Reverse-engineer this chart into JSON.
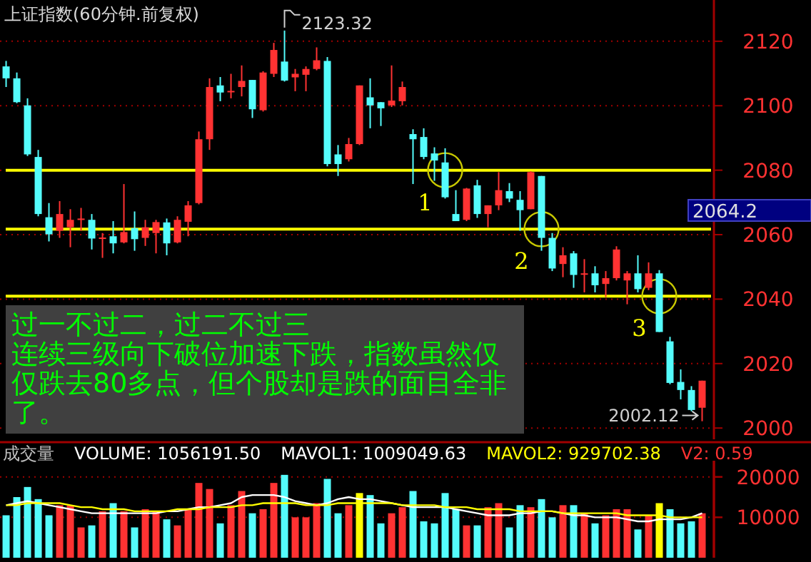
{
  "chart_data": [
    {
      "type": "candlestick",
      "title": "上证指数(60分钟.前复权)",
      "categories": [
        null,
        null,
        null,
        null,
        null,
        null,
        null,
        null,
        null,
        null,
        null,
        null,
        null,
        null,
        null,
        null,
        null,
        null,
        null,
        null,
        null,
        null,
        null,
        null,
        null,
        null,
        null,
        null,
        null,
        null,
        null,
        null,
        null,
        null,
        null,
        null,
        null,
        null,
        null,
        null,
        null,
        null,
        null,
        null,
        null,
        null,
        null,
        null,
        null,
        null,
        null,
        null,
        null,
        null,
        null,
        null,
        null,
        null,
        null,
        null,
        null,
        null,
        null,
        null,
        null,
        null
      ],
      "ohlc": [
        [
          2112.2,
          2113.9,
          2105.8,
          2108.5
        ],
        [
          2108.5,
          2110.3,
          2100.8,
          2101.1
        ],
        [
          2100.1,
          2102.3,
          2084.4,
          2084.9
        ],
        [
          2084.1,
          2086.3,
          2065.7,
          2066.4
        ],
        [
          2065.4,
          2069.8,
          2057.9,
          2060.1
        ],
        [
          2061.2,
          2070.4,
          2059.0,
          2066.4
        ],
        [
          2062.3,
          2067.9,
          2056.1,
          2064.6
        ],
        [
          2064.9,
          2068.3,
          2061.2,
          2065.0
        ],
        [
          2064.6,
          2066.4,
          2055.4,
          2058.8
        ],
        [
          2058.9,
          2060.5,
          2052.8,
          2059.1
        ],
        [
          2059.5,
          2064.2,
          2054.2,
          2057.3
        ],
        [
          2057.6,
          2075.7,
          2057.3,
          2060.8
        ],
        [
          2062.0,
          2067.2,
          2055.0,
          2058.6
        ],
        [
          2059.0,
          2064.6,
          2056.5,
          2062.3
        ],
        [
          2060.5,
          2064.6,
          2054.2,
          2063.9
        ],
        [
          2063.8,
          2065.0,
          2053.6,
          2057.3
        ],
        [
          2057.6,
          2065.7,
          2057.3,
          2064.6
        ],
        [
          2064.0,
          2070.4,
          2059.5,
          2069.1
        ],
        [
          2069.8,
          2092.0,
          2069.4,
          2089.6
        ],
        [
          2089.6,
          2108.5,
          2086.3,
          2105.8
        ],
        [
          2106.3,
          2108.9,
          2101.4,
          2104.1
        ],
        [
          2104.5,
          2109.9,
          2102.3,
          2104.6
        ],
        [
          2105.8,
          2112.5,
          2102.9,
          2107.7
        ],
        [
          2108.0,
          2108.0,
          2096.2,
          2098.9
        ],
        [
          2098.6,
          2110.7,
          2098.2,
          2110.3
        ],
        [
          2109.9,
          2119.5,
          2108.9,
          2117.3
        ],
        [
          2113.7,
          2123.32,
          2107.5,
          2107.8
        ],
        [
          2108.8,
          2111.4,
          2104.5,
          2109.9
        ],
        [
          2109.6,
          2112.2,
          2104.5,
          2111.4
        ],
        [
          2111.4,
          2118.1,
          2111.0,
          2114.1
        ],
        [
          2113.9,
          2115.1,
          2081.2,
          2081.9
        ],
        [
          2084.9,
          2087.8,
          2078.2,
          2081.9
        ],
        [
          2083.4,
          2090.0,
          2082.7,
          2088.1
        ],
        [
          2088.1,
          2106.3,
          2087.8,
          2106.3
        ],
        [
          2102.6,
          2108.5,
          2093.0,
          2100.1
        ],
        [
          2101.1,
          2101.1,
          2093.7,
          2099.2
        ],
        [
          2100.1,
          2112.5,
          2099.6,
          2101.6
        ],
        [
          2101.4,
          2107.5,
          2100.1,
          2105.8
        ],
        [
          2091.2,
          2092.7,
          2075.7,
          2089.6
        ],
        [
          2090.3,
          2093.0,
          2083.4,
          2084.1
        ],
        [
          2085.2,
          2087.1,
          2076.7,
          2083.0
        ],
        [
          2082.4,
          2086.8,
          2071.2,
          2071.6
        ],
        [
          2066.4,
          2073.8,
          2064.2,
          2064.2
        ],
        [
          2064.6,
          2074.5,
          2064.2,
          2074.3
        ],
        [
          2075.3,
          2077.0,
          2065.2,
          2066.4
        ],
        [
          2066.4,
          2069.1,
          2062.3,
          2069.1
        ],
        [
          2069.1,
          2079.4,
          2067.6,
          2073.8
        ],
        [
          2073.5,
          2076.0,
          2070.1,
          2071.2
        ],
        [
          2070.8,
          2073.5,
          2061.2,
          2067.6
        ],
        [
          2067.9,
          2079.7,
          2067.9,
          2079.4
        ],
        [
          2078.2,
          2078.2,
          2055.0,
          2059.0
        ],
        [
          2059.0,
          2060.5,
          2048.7,
          2049.5
        ],
        [
          2050.9,
          2056.1,
          2046.8,
          2053.6
        ],
        [
          2054.2,
          2054.9,
          2043.5,
          2047.5
        ],
        [
          2047.9,
          2052.4,
          2042.1,
          2048.0
        ],
        [
          2048.0,
          2050.2,
          2042.1,
          2044.3
        ],
        [
          2044.7,
          2048.7,
          2040.6,
          2046.5
        ],
        [
          2046.5,
          2056.4,
          2045.8,
          2055.4
        ],
        [
          2045.8,
          2048.7,
          2038.4,
          2048.0
        ],
        [
          2048.0,
          2053.6,
          2042.1,
          2043.1
        ],
        [
          2043.5,
          2051.4,
          2042.8,
          2048.0
        ],
        [
          2048.0,
          2049.0,
          2029.8,
          2029.8
        ],
        [
          2026.9,
          2028.3,
          2013.6,
          2014.0
        ],
        [
          2014.3,
          2018.2,
          2008.9,
          2011.8
        ],
        [
          2011.8,
          2013.0,
          2005.2,
          2005.6
        ],
        [
          2006.3,
          2014.7,
          2002.12,
          2014.7
        ]
      ],
      "colors": [
        "#54fcfc",
        "#54fcfc",
        "#54fcfc",
        "#54fcfc",
        "#54fcfc",
        "#ff3232",
        "#ff3232",
        "#ff3232",
        "#54fcfc",
        "#ff3232",
        "#54fcfc",
        "#ff3232",
        "#54fcfc",
        "#ff3232",
        "#ff3232",
        "#54fcfc",
        "#ff3232",
        "#ff3232",
        "#ff3232",
        "#ff3232",
        "#54fcfc",
        "#ff3232",
        "#ff3232",
        "#54fcfc",
        "#ff3232",
        "#ff3232",
        "#54fcfc",
        "#ff3232",
        "#ff3232",
        "#ff3232",
        "#54fcfc",
        "#54fcfc",
        "#ff3232",
        "#ff3232",
        "#54fcfc",
        "#54fcfc",
        "#ff3232",
        "#ff3232",
        "#54fcfc",
        "#54fcfc",
        "#54fcfc",
        "#54fcfc",
        "#54fcfc",
        "#ff3232",
        "#54fcfc",
        "#ff3232",
        "#ff3232",
        "#54fcfc",
        "#54fcfc",
        "#ff3232",
        "#54fcfc",
        "#54fcfc",
        "#ff3232",
        "#54fcfc",
        "#ff3232",
        "#54fcfc",
        "#ff3232",
        "#ff3232",
        "#ff3232",
        "#54fcfc",
        "#ff3232",
        "#54fcfc",
        "#54fcfc",
        "#54fcfc",
        "#54fcfc",
        "#ff3232"
      ],
      "ref_lines": [
        {
          "axis": "y",
          "value": 2080,
          "color": "#ffff00"
        },
        {
          "axis": "y",
          "value": 2061.7,
          "color": "#ffff00"
        },
        {
          "axis": "y",
          "value": 2040.9,
          "color": "#ffff00"
        }
      ],
      "ylim": [
        1996.5,
        2132.8
      ],
      "yticks": [
        2000,
        2020,
        2040,
        2060,
        2080,
        2100,
        2120
      ],
      "grid": "y",
      "annotations": [
        "过一不过二，过二不过三",
        "连续三级向下破位加速下跌，指数虽然仅仅跌去80多点，但个股却是跌的面目全非了。",
        "2123.32",
        "2002.12",
        "2064.2",
        "1",
        "2",
        "3"
      ]
    },
    {
      "type": "bar",
      "title": "成交量",
      "categories": [
        null,
        null,
        null,
        null,
        null,
        null,
        null,
        null,
        null,
        null,
        null,
        null,
        null,
        null,
        null,
        null,
        null,
        null,
        null,
        null,
        null,
        null,
        null,
        null,
        null,
        null,
        null,
        null,
        null,
        null,
        null,
        null,
        null,
        null,
        null,
        null,
        null,
        null,
        null,
        null,
        null,
        null,
        null,
        null,
        null,
        null,
        null,
        null,
        null,
        null,
        null,
        null,
        null,
        null,
        null,
        null,
        null,
        null,
        null,
        null,
        null,
        null,
        null,
        null,
        null,
        null
      ],
      "series": [
        {
          "name": "VOLUME: 1056191.50",
          "values": [
            10500,
            15000,
            17500,
            14500,
            10500,
            13000,
            13000,
            7500,
            8000,
            11500,
            13500,
            11500,
            7500,
            12000,
            11500,
            9500,
            8000,
            12000,
            18500,
            17000,
            8500,
            13000,
            16500,
            11000,
            12000,
            18500,
            20500,
            10000,
            10000,
            13500,
            19500,
            11000,
            13000,
            16000,
            15500,
            8500,
            11000,
            12500,
            16500,
            9000,
            8500,
            16000,
            12000,
            8000,
            8000,
            12500,
            13500,
            7500,
            13000,
            12500,
            14500,
            10000,
            13000,
            13000,
            11000,
            8500,
            10500,
            12000,
            12000,
            7000,
            10500,
            13500,
            12000,
            8500,
            9000,
            11000
          ],
          "colors": [
            "#54fcfc",
            "#54fcfc",
            "#54fcfc",
            "#54fcfc",
            "#54fcfc",
            "#ff3232",
            "#ff3232",
            "#ff3232",
            "#54fcfc",
            "#ff3232",
            "#54fcfc",
            "#ff3232",
            "#54fcfc",
            "#ff3232",
            "#ff3232",
            "#54fcfc",
            "#ff3232",
            "#ff3232",
            "#ff3232",
            "#ff3232",
            "#54fcfc",
            "#ff3232",
            "#ff3232",
            "#54fcfc",
            "#ff3232",
            "#ff3232",
            "#54fcfc",
            "#ff3232",
            "#ff3232",
            "#ff3232",
            "#54fcfc",
            "#54fcfc",
            "#ff3232",
            "#ffff00",
            "#54fcfc",
            "#54fcfc",
            "#ff3232",
            "#ff3232",
            "#54fcfc",
            "#54fcfc",
            "#54fcfc",
            "#54fcfc",
            "#54fcfc",
            "#ff3232",
            "#54fcfc",
            "#ff3232",
            "#ff3232",
            "#54fcfc",
            "#54fcfc",
            "#ff3232",
            "#54fcfc",
            "#54fcfc",
            "#ff3232",
            "#54fcfc",
            "#ff3232",
            "#54fcfc",
            "#ff3232",
            "#ff3232",
            "#ff3232",
            "#54fcfc",
            "#ff3232",
            "#ffff00",
            "#54fcfc",
            "#54fcfc",
            "#54fcfc",
            "#ff3232"
          ]
        }
      ],
      "ylim": [
        0,
        24000
      ],
      "yticks": [
        10000,
        20000
      ],
      "grid": "y"
    },
    {
      "type": "line",
      "categories": [
        null,
        null,
        null,
        null,
        null,
        null,
        null,
        null,
        null,
        null,
        null,
        null,
        null,
        null,
        null,
        null,
        null,
        null,
        null,
        null,
        null,
        null,
        null,
        null,
        null,
        null,
        null,
        null,
        null,
        null,
        null,
        null,
        null,
        null,
        null,
        null,
        null,
        null,
        null,
        null,
        null,
        null,
        null,
        null,
        null,
        null,
        null,
        null,
        null,
        null,
        null,
        null,
        null,
        null,
        null,
        null,
        null,
        null,
        null,
        null,
        null,
        null,
        null,
        null,
        null,
        null
      ],
      "series": [
        {
          "name": "MAVOL1: 1009049.63",
          "color": "#ffffff",
          "values": [
            13000,
            13500,
            14000,
            13500,
            13000,
            12500,
            12000,
            11500,
            11000,
            11000,
            11000,
            11000,
            11000,
            11000,
            11000,
            11500,
            11500,
            12000,
            12500,
            12500,
            13000,
            13500,
            15000,
            15500,
            15500,
            15500,
            15000,
            14000,
            13500,
            13000,
            13500,
            14500,
            15000,
            14500,
            14500,
            14000,
            13500,
            13000,
            12500,
            12500,
            12500,
            12500,
            12000,
            11500,
            11000,
            10500,
            10500,
            10500,
            11000,
            11000,
            11500,
            11500,
            11000,
            10500,
            10500,
            10000,
            10000,
            10000,
            9500,
            9000,
            9000,
            9500,
            9500,
            9500,
            10000,
            11000
          ]
        },
        {
          "name": "MAVOL2: 929702.38",
          "color": "#ffff00",
          "values": [
            13000,
            13000,
            13500,
            13500,
            13500,
            13500,
            13000,
            12500,
            12500,
            12000,
            12000,
            12000,
            11500,
            11500,
            11500,
            11500,
            12000,
            12000,
            12000,
            12500,
            12500,
            12500,
            13000,
            13000,
            13500,
            13500,
            13500,
            13500,
            13000,
            13000,
            13000,
            13500,
            13500,
            13500,
            13500,
            13500,
            13500,
            13000,
            13000,
            13000,
            13000,
            12500,
            12500,
            12500,
            12000,
            12000,
            12000,
            12000,
            11500,
            11500,
            11500,
            11500,
            11000,
            11000,
            11000,
            11000,
            11000,
            11000,
            10500,
            10500,
            10500,
            10500,
            10000,
            10000,
            10000,
            10000
          ]
        }
      ],
      "ylim": [
        0,
        24000
      ],
      "yticks": [
        10000,
        20000
      ],
      "tick_labels": false,
      "annotations": [
        "V2: 0.59"
      ]
    }
  ]
}
